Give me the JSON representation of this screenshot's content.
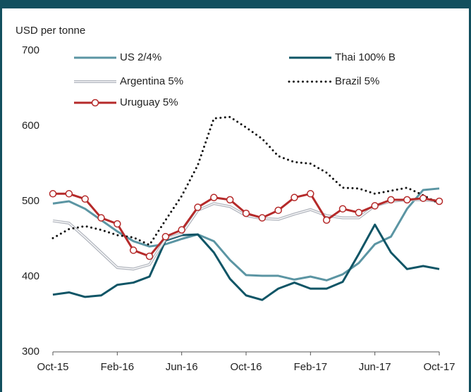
{
  "chart_data": {
    "type": "line",
    "y_label": "USD per tonne",
    "categories": [
      "Oct-15",
      null,
      null,
      null,
      "Feb-16",
      null,
      null,
      null,
      "Jun-16",
      null,
      null,
      null,
      "Oct-16",
      null,
      null,
      null,
      "Feb-17",
      null,
      null,
      null,
      "Jun-17",
      null,
      null,
      null,
      "Oct-17"
    ],
    "ylim": [
      300,
      700
    ],
    "yticks": [
      300,
      400,
      500,
      600,
      700
    ],
    "grid": false,
    "series": [
      {
        "name": "US 2/4%",
        "color": "#5b95a3",
        "style": "solid",
        "values": [
          497,
          500,
          490,
          475,
          460,
          447,
          440,
          443,
          450,
          456,
          447,
          422,
          402,
          401,
          401,
          396,
          400,
          395,
          403,
          418,
          443,
          453,
          490,
          515,
          517
        ]
      },
      {
        "name": "Thai 100% B",
        "color": "#0f5566",
        "style": "solid",
        "values": [
          376,
          379,
          373,
          375,
          389,
          392,
          400,
          448,
          455,
          456,
          432,
          397,
          375,
          369,
          384,
          392,
          384,
          384,
          393,
          430,
          469,
          432,
          410,
          414,
          410
        ]
      },
      {
        "name": "Argentina 5%",
        "color": "#b4b8c0",
        "style": "double",
        "values": [
          474,
          471,
          452,
          432,
          412,
          410,
          416,
          450,
          457,
          488,
          497,
          493,
          481,
          477,
          476,
          483,
          489,
          481,
          478,
          478,
          494,
          500,
          502,
          502,
          500
        ]
      },
      {
        "name": "Brazil 5%",
        "color": "#111111",
        "style": "dotted",
        "values": [
          451,
          463,
          467,
          462,
          455,
          452,
          442,
          475,
          507,
          548,
          610,
          612,
          598,
          583,
          560,
          552,
          550,
          538,
          518,
          517,
          510,
          514,
          518,
          508,
          497
        ]
      },
      {
        "name": "Uruguay 5%",
        "color": "#b52a2a",
        "style": "marker",
        "values": [
          510,
          510,
          503,
          478,
          470,
          435,
          427,
          453,
          462,
          492,
          505,
          502,
          484,
          478,
          488,
          505,
          510,
          475,
          490,
          485,
          494,
          502,
          502,
          504,
          500
        ]
      }
    ]
  }
}
